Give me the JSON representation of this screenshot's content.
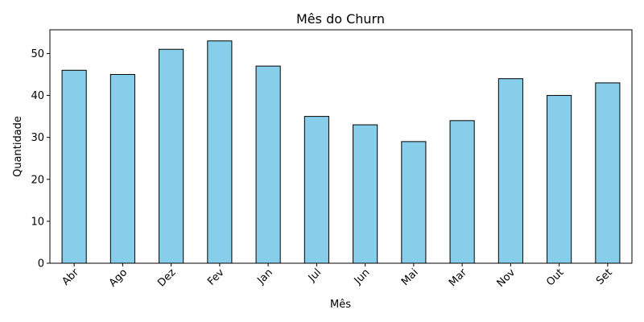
{
  "chart_data": {
    "type": "bar",
    "title": "Mês do Churn",
    "xlabel": "Mês",
    "ylabel": "Quantidade",
    "categories": [
      "Abr",
      "Ago",
      "Dez",
      "Fev",
      "Jan",
      "Jul",
      "Jun",
      "Mai",
      "Mar",
      "Nov",
      "Out",
      "Set"
    ],
    "values": [
      46,
      45,
      51,
      53,
      47,
      35,
      33,
      29,
      34,
      44,
      40,
      43
    ],
    "ylim": [
      0,
      55.65
    ],
    "yticks": [
      0,
      10,
      20,
      30,
      40,
      50
    ],
    "grid": false,
    "legend": "none",
    "colors": {
      "bar_fill": "#87ceeb",
      "bar_edge": "#000000",
      "axis": "#000000",
      "background": "#ffffff"
    }
  }
}
